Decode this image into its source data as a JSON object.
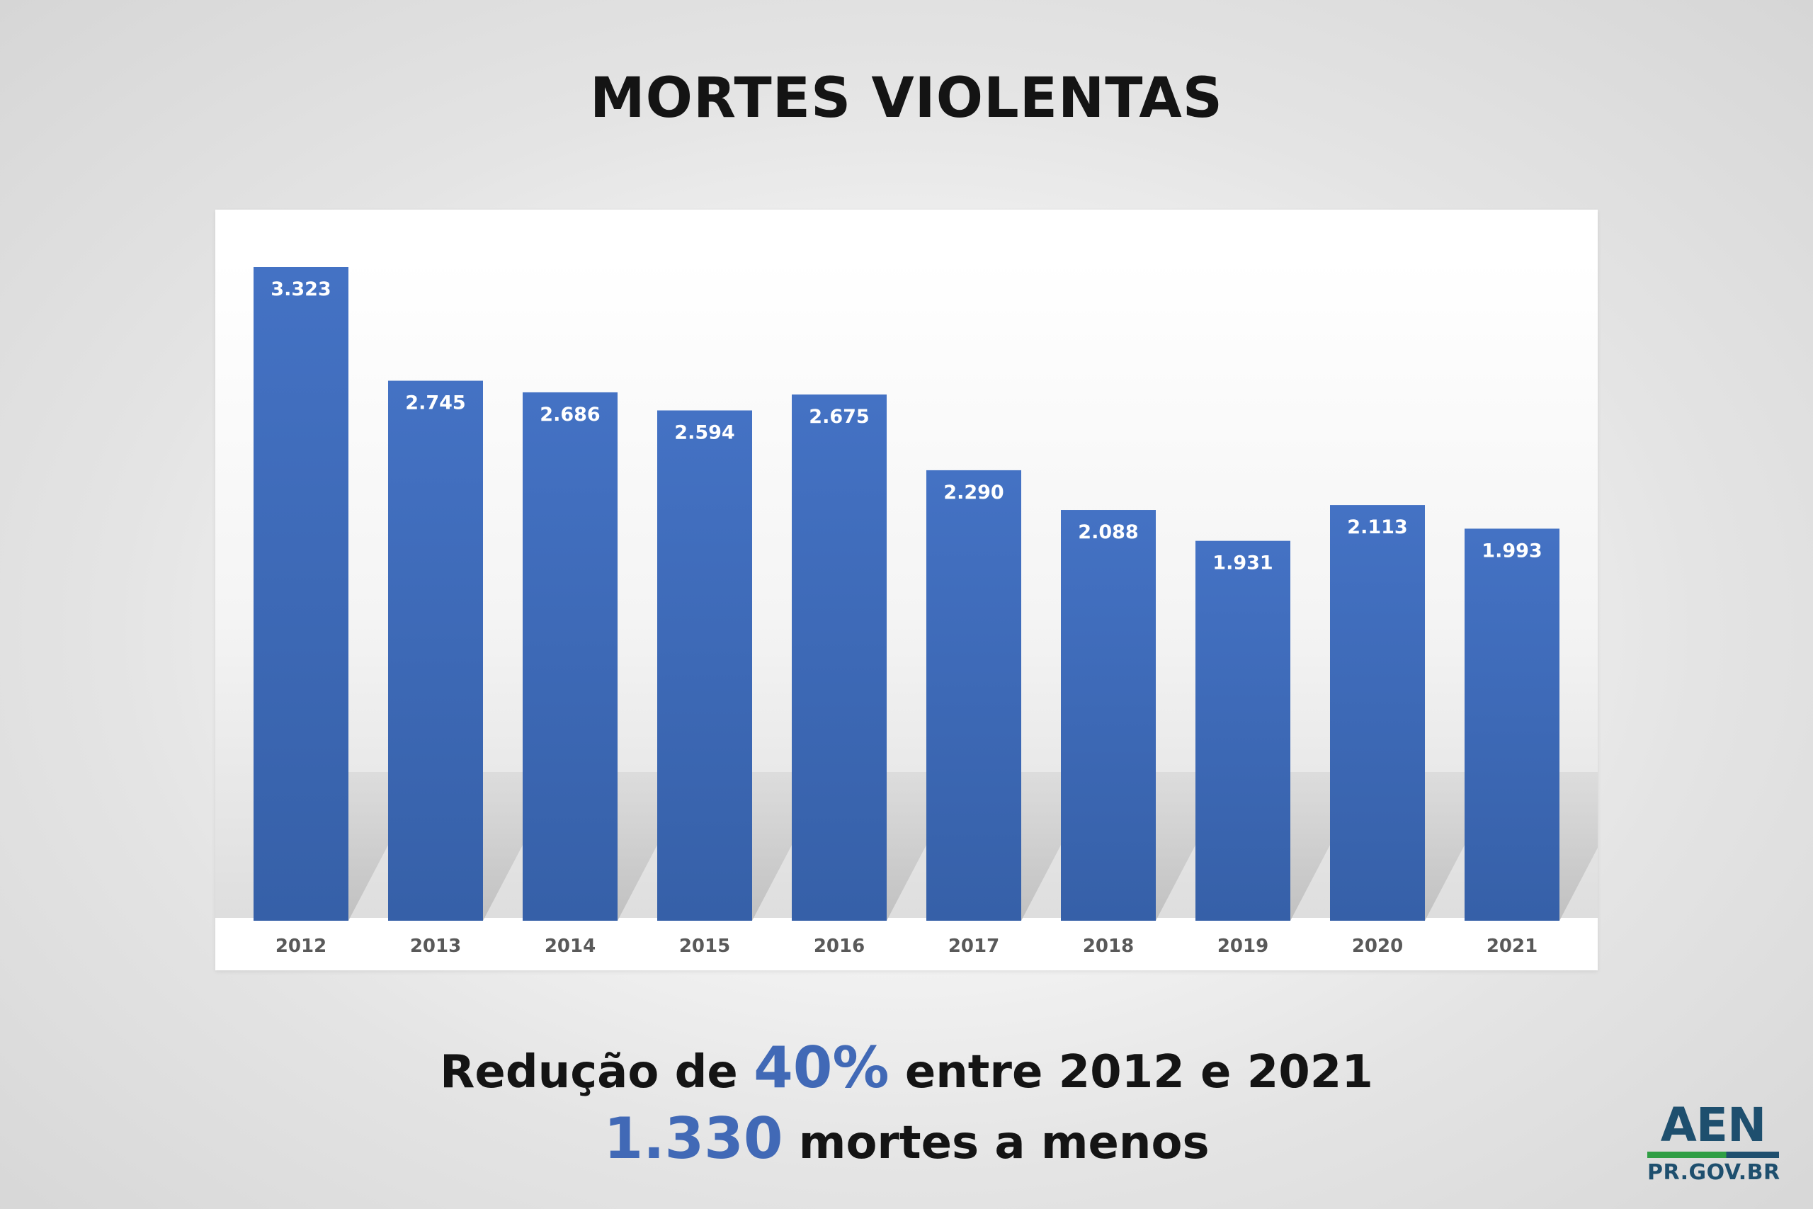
{
  "header": {
    "title": "MORTES VIOLENTAS"
  },
  "summary": {
    "line1_before": "Redução de ",
    "line1_highlight": "40%",
    "line1_after": " entre 2012 e 2021",
    "line2_highlight": "1.330",
    "line2_after": " mortes a menos"
  },
  "logo": {
    "main": "AEN",
    "sub": "PR.GOV.BR"
  },
  "colors": {
    "bar_top": "#4472c4",
    "bar_bottom": "#3660a8",
    "highlight": "#4169b6",
    "title": "#141414",
    "logo_blue": "#1e4f6e",
    "logo_green": "#2f9e44"
  },
  "chart_data": {
    "type": "bar",
    "title": "MORTES VIOLENTAS",
    "categories": [
      "2012",
      "2013",
      "2014",
      "2015",
      "2016",
      "2017",
      "2018",
      "2019",
      "2020",
      "2021"
    ],
    "values": [
      3323,
      2745,
      2686,
      2594,
      2675,
      2290,
      2088,
      1931,
      2113,
      1993
    ],
    "value_labels": [
      "3.323",
      "2.745",
      "2.686",
      "2.594",
      "2.675",
      "2.290",
      "2.088",
      "1.931",
      "2.113",
      "1.993"
    ],
    "xlabel": "",
    "ylabel": "",
    "ylim": [
      0,
      3323
    ],
    "grid": false,
    "legend": "none"
  }
}
